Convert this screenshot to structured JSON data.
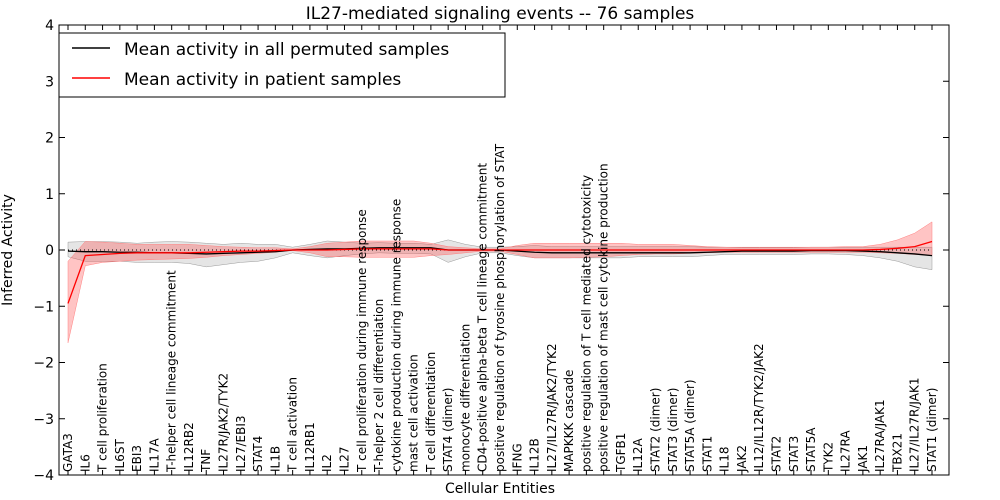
{
  "chart_data": {
    "type": "line",
    "title": "IL27-mediated signaling events -- 76 samples",
    "xlabel": "Cellular Entities",
    "ylabel": "Inferred Activity",
    "ylim": [
      -4,
      4
    ],
    "yticks": [
      "4",
      "3",
      "2",
      "1",
      "0",
      "−1",
      "−2",
      "−3",
      "−4"
    ],
    "ytick_values": [
      4,
      3,
      2,
      1,
      0,
      -1,
      -2,
      -3,
      -4
    ],
    "legend_position": "top-left",
    "categories": [
      "GATA3",
      "IL6",
      "T cell proliferation",
      "IL6ST",
      "EBI3",
      "IL17A",
      "T-helper cell lineage commitment",
      "IL12RB2",
      "TNF",
      "IL27R/JAK2/TYK2",
      "IL27/EBI3",
      "STAT4",
      "IL1B",
      "T cell activation",
      "IL12RB1",
      "IL2",
      "IL27",
      "T cell proliferation during immune response",
      "T-helper 2 cell differentiation",
      "cytokine production during immune response",
      "mast cell activation",
      "T cell differentiation",
      "STAT4 (dimer)",
      "monocyte differentiation",
      "CD4-positive alpha-beta T cell lineage commitment",
      "positive regulation of tyrosine phosphorylation of STAT",
      "IFNG",
      "IL12B",
      "IL27/IL27R/JAK2/TYK2",
      "MAPKKK cascade",
      "positive regulation of T cell mediated cytotoxicity",
      "positive regulation of mast cell cytokine production",
      "TGFB1",
      "IL12A",
      "STAT2 (dimer)",
      "STAT3 (dimer)",
      "STAT5A (dimer)",
      "STAT1",
      "IL18",
      "JAK2",
      "IL12/IL12R/TYK2/JAK2",
      "STAT2",
      "STAT3",
      "STAT5A",
      "TYK2",
      "IL27RA",
      "JAK1",
      "IL27RA/JAK1",
      "TBX21",
      "IL27/IL27R/JAK1",
      "STAT1 (dimer)"
    ],
    "series": [
      {
        "name": "Mean activity in all permuted samples",
        "color": "#000000",
        "values": [
          -0.02,
          -0.03,
          -0.03,
          -0.04,
          -0.04,
          -0.05,
          -0.05,
          -0.06,
          -0.07,
          -0.06,
          -0.05,
          -0.04,
          -0.03,
          0.0,
          0.01,
          0.02,
          0.02,
          0.03,
          0.04,
          0.04,
          0.04,
          0.04,
          0.0,
          0.0,
          0.0,
          0.0,
          -0.02,
          -0.04,
          -0.05,
          -0.05,
          -0.05,
          -0.05,
          -0.05,
          -0.05,
          -0.05,
          -0.05,
          -0.05,
          -0.04,
          -0.03,
          -0.02,
          -0.02,
          -0.02,
          -0.02,
          -0.01,
          -0.01,
          -0.01,
          -0.02,
          -0.03,
          -0.05,
          -0.07,
          -0.1
        ],
        "band_low": [
          -0.12,
          -0.2,
          -0.2,
          -0.2,
          -0.22,
          -0.22,
          -0.22,
          -0.24,
          -0.3,
          -0.26,
          -0.22,
          -0.2,
          -0.14,
          -0.05,
          -0.1,
          -0.14,
          -0.1,
          -0.07,
          -0.05,
          -0.06,
          -0.06,
          -0.07,
          -0.22,
          -0.12,
          -0.05,
          -0.05,
          -0.1,
          -0.14,
          -0.14,
          -0.14,
          -0.14,
          -0.14,
          -0.14,
          -0.12,
          -0.12,
          -0.12,
          -0.12,
          -0.1,
          -0.08,
          -0.08,
          -0.08,
          -0.08,
          -0.08,
          -0.07,
          -0.07,
          -0.08,
          -0.1,
          -0.14,
          -0.2,
          -0.3,
          -0.35
        ],
        "band_high": [
          0.14,
          0.15,
          0.15,
          0.14,
          0.12,
          0.14,
          0.15,
          0.14,
          0.12,
          0.1,
          0.12,
          0.1,
          0.1,
          0.05,
          0.1,
          0.16,
          0.14,
          0.12,
          0.13,
          0.12,
          0.12,
          0.1,
          0.18,
          0.1,
          0.05,
          0.05,
          0.06,
          0.08,
          0.06,
          0.06,
          0.06,
          0.06,
          0.06,
          0.06,
          0.06,
          0.06,
          0.06,
          0.05,
          0.05,
          0.04,
          0.04,
          0.04,
          0.04,
          0.05,
          0.05,
          0.05,
          0.05,
          0.05,
          0.05,
          0.05,
          0.05
        ]
      },
      {
        "name": "Mean activity in patient samples",
        "color": "#ff0000",
        "values": [
          -0.95,
          -0.1,
          -0.08,
          -0.06,
          -0.05,
          -0.05,
          -0.05,
          -0.05,
          -0.04,
          -0.03,
          -0.02,
          -0.02,
          -0.01,
          0.0,
          0.0,
          0.0,
          0.01,
          0.02,
          0.02,
          0.02,
          0.02,
          0.02,
          0.0,
          0.0,
          0.0,
          0.0,
          0.0,
          0.0,
          0.0,
          0.0,
          0.0,
          0.0,
          0.0,
          0.0,
          0.0,
          0.0,
          0.0,
          0.0,
          0.0,
          0.0,
          0.0,
          0.0,
          0.0,
          0.0,
          0.0,
          0.0,
          0.0,
          0.01,
          0.03,
          0.06,
          0.15
        ],
        "band_low": [
          -1.65,
          -0.28,
          -0.22,
          -0.2,
          -0.18,
          -0.17,
          -0.16,
          -0.15,
          -0.13,
          -0.1,
          -0.08,
          -0.06,
          -0.04,
          -0.01,
          -0.05,
          -0.12,
          -0.12,
          -0.13,
          -0.13,
          -0.13,
          -0.13,
          -0.1,
          -0.08,
          -0.05,
          -0.02,
          -0.02,
          -0.08,
          -0.14,
          -0.14,
          -0.14,
          -0.13,
          -0.12,
          -0.1,
          -0.08,
          -0.07,
          -0.07,
          -0.06,
          -0.05,
          -0.04,
          -0.04,
          -0.04,
          -0.04,
          -0.04,
          -0.04,
          -0.04,
          -0.04,
          -0.04,
          -0.05,
          -0.06,
          -0.08,
          -0.1
        ],
        "band_high": [
          -0.2,
          0.15,
          0.14,
          0.12,
          0.1,
          0.1,
          0.1,
          0.1,
          0.08,
          0.06,
          0.05,
          0.04,
          0.04,
          0.02,
          0.06,
          0.12,
          0.14,
          0.16,
          0.16,
          0.16,
          0.16,
          0.12,
          0.06,
          0.04,
          0.02,
          0.02,
          0.08,
          0.12,
          0.12,
          0.12,
          0.12,
          0.12,
          0.12,
          0.1,
          0.1,
          0.1,
          0.08,
          0.06,
          0.05,
          0.05,
          0.05,
          0.05,
          0.05,
          0.05,
          0.05,
          0.06,
          0.06,
          0.1,
          0.18,
          0.3,
          0.5
        ]
      }
    ]
  }
}
